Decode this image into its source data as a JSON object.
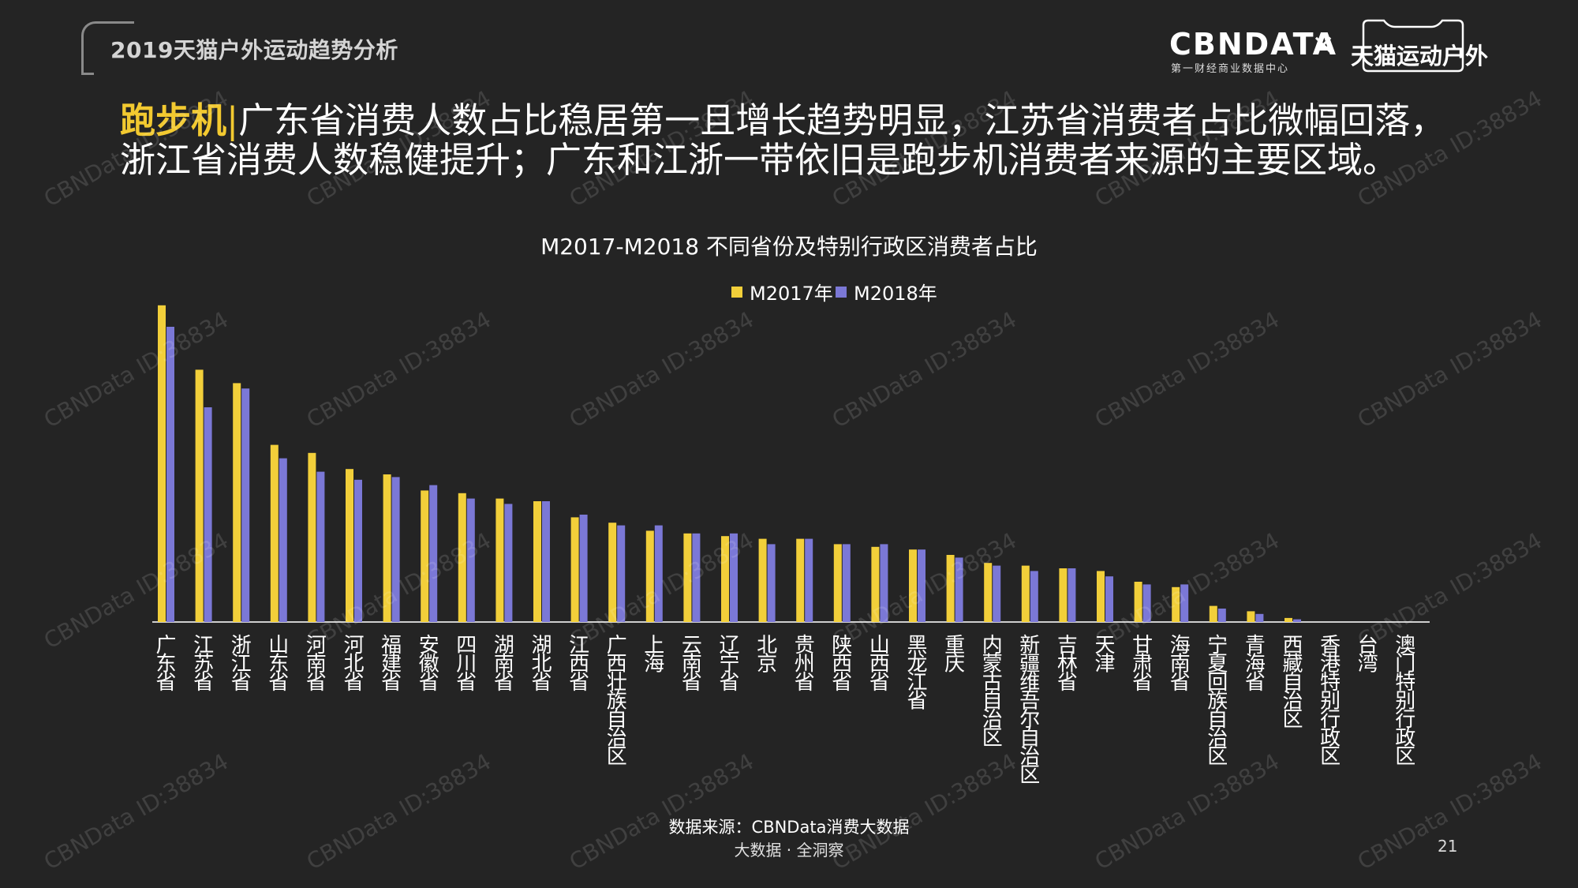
{
  "header": {
    "report_title": "2019天猫户外运动趋势分析",
    "logo_cbn": "CBNDATA",
    "logo_cbn_sub": "第一财经商业数据中心",
    "logo_times": "×",
    "logo_tmall": "天猫运动户外"
  },
  "headline": {
    "keyword": "跑步机",
    "separator": "|",
    "text": "广东省消费人数占比稳居第一且增长趋势明显，江苏省消费者占比微幅回落，浙江省消费人数稳健提升；广东和江浙一带依旧是跑步机消费者来源的主要区域。"
  },
  "chart_data": {
    "type": "bar",
    "title": "M2017-M2018 不同省份及特别行政区消费者占比",
    "legend_position": "top-center",
    "grid": false,
    "categories": [
      "广东省",
      "江苏省",
      "浙江省",
      "山东省",
      "河南省",
      "河北省",
      "福建省",
      "安徽省",
      "四川省",
      "湖南省",
      "湖北省",
      "江西省",
      "广西壮族自治区",
      "上海",
      "云南省",
      "辽宁省",
      "北京",
      "贵州省",
      "陕西省",
      "山西省",
      "黑龙江省",
      "重庆",
      "内蒙古自治区",
      "新疆维吾尔自治区",
      "吉林省",
      "天津",
      "甘肃省",
      "海南省",
      "宁夏回族自治区",
      "青海省",
      "西藏自治区",
      "香港特别行政区",
      "台湾",
      "澳门特别行政区"
    ],
    "series": [
      {
        "name": "M2017年",
        "color": "#f2cf3a",
        "values": [
          11.8,
          9.4,
          8.9,
          6.6,
          6.3,
          5.7,
          5.5,
          4.9,
          4.8,
          4.6,
          4.5,
          3.9,
          3.7,
          3.4,
          3.3,
          3.2,
          3.1,
          3.1,
          2.9,
          2.8,
          2.7,
          2.5,
          2.2,
          2.1,
          2.0,
          1.9,
          1.5,
          1.3,
          0.6,
          0.4,
          0.15,
          0,
          0,
          0
        ]
      },
      {
        "name": "M2018年",
        "color": "#7b78d6",
        "values": [
          11.0,
          8.0,
          8.7,
          6.1,
          5.6,
          5.3,
          5.4,
          5.1,
          4.6,
          4.4,
          4.5,
          4.0,
          3.6,
          3.6,
          3.3,
          3.3,
          2.9,
          3.1,
          2.9,
          2.9,
          2.7,
          2.4,
          2.1,
          1.9,
          2.0,
          1.7,
          1.4,
          1.4,
          0.5,
          0.3,
          0.1,
          0,
          0,
          0
        ]
      }
    ],
    "ylim": [
      0,
      12
    ]
  },
  "footer": {
    "source": "数据来源：CBNData消费大数据",
    "tagline": "大数据 · 全洞察",
    "page_number": "21"
  },
  "watermark": {
    "text": "CBNData ID:38834"
  },
  "colors": {
    "background": "#242424",
    "accent": "#f2c930"
  }
}
